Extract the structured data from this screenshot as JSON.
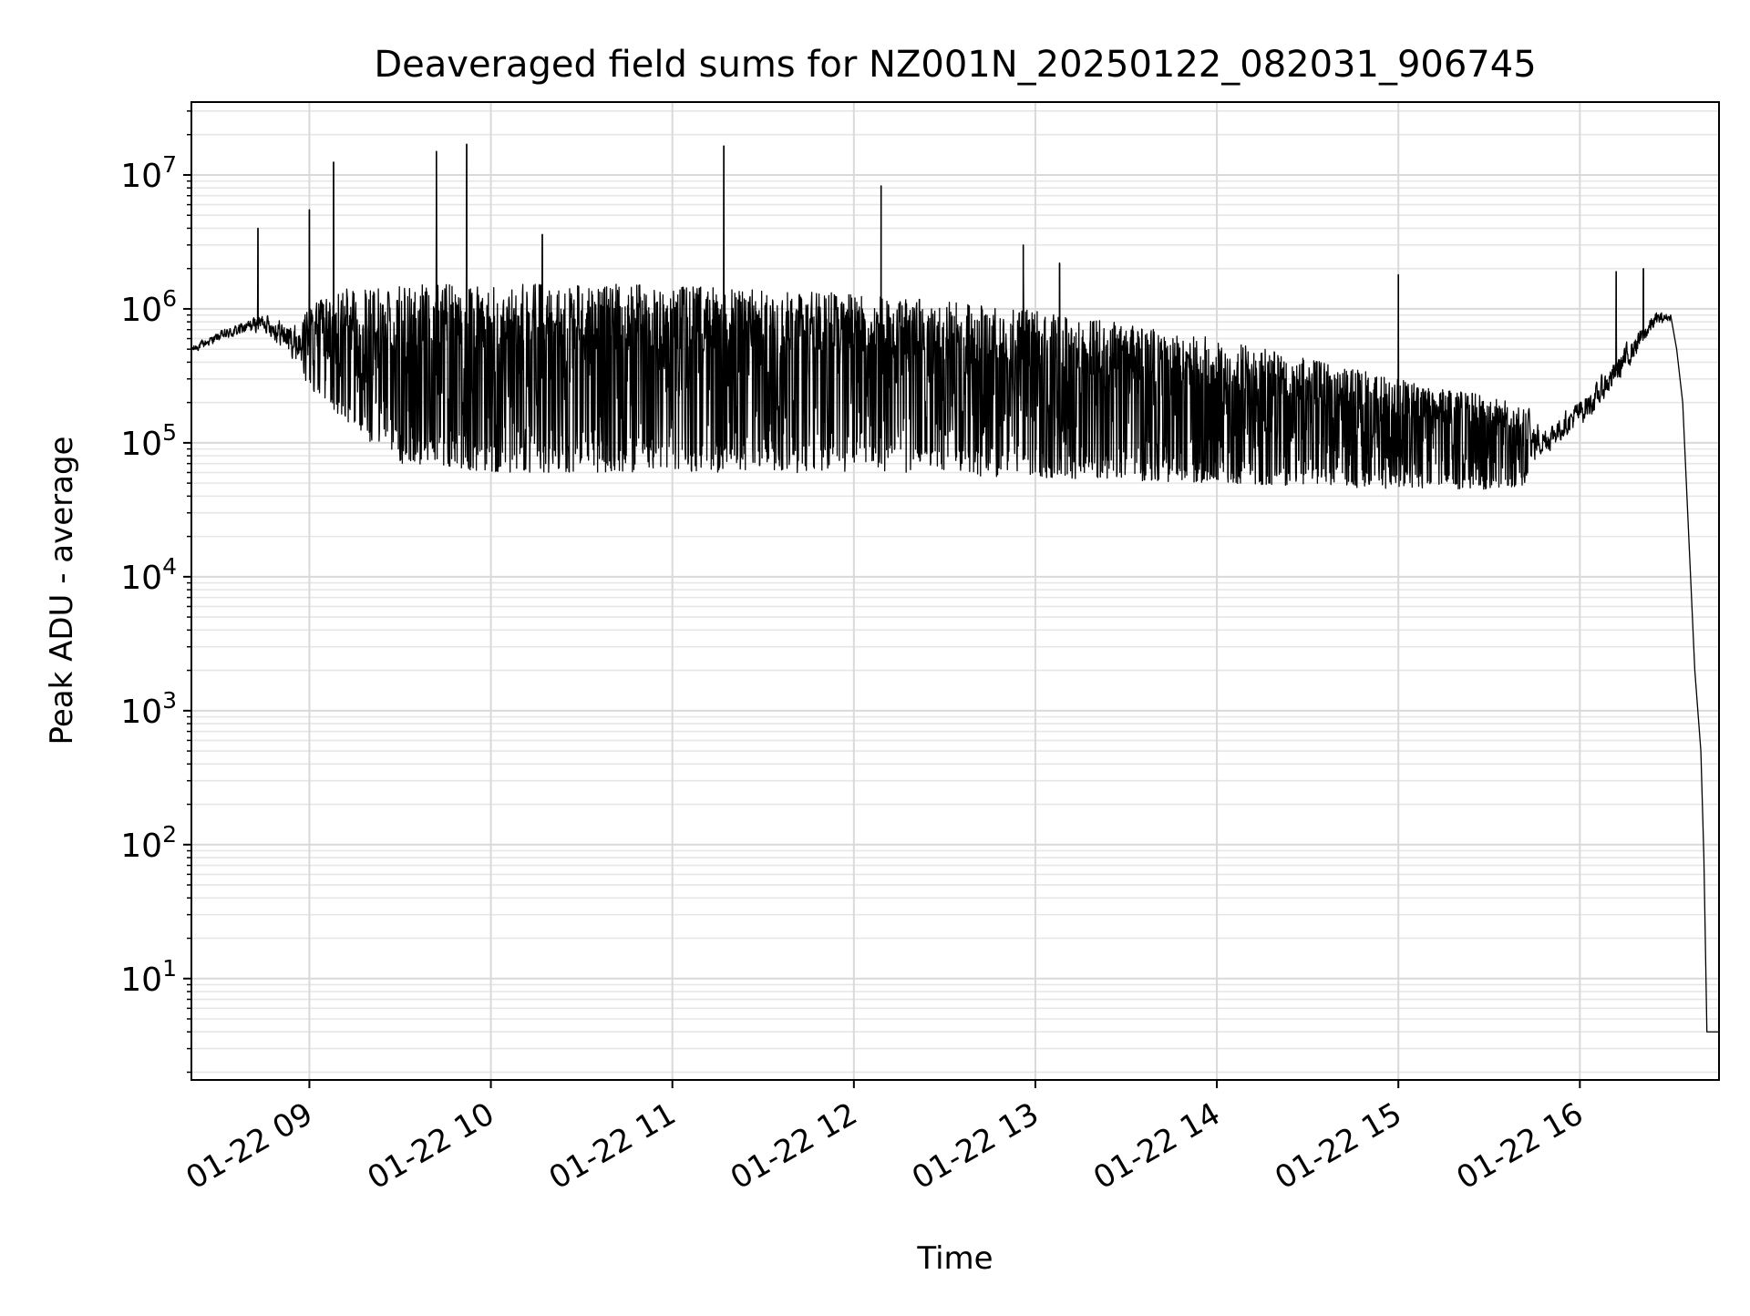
{
  "chart_data": {
    "type": "line",
    "title": "Deaveraged field sums for NZ001N_20250122_082031_906745",
    "xlabel": "Time",
    "ylabel": "Peak ADU - average",
    "y_scale": "log",
    "x_range": [
      "2025-01-22 08:21",
      "2025-01-22 16:46"
    ],
    "y_range": [
      1.75,
      35000000
    ],
    "x_ticks": [
      {
        "time": "2025-01-22 09:00",
        "label": "01-22 09"
      },
      {
        "time": "2025-01-22 10:00",
        "label": "01-22 10"
      },
      {
        "time": "2025-01-22 11:00",
        "label": "01-22 11"
      },
      {
        "time": "2025-01-22 12:00",
        "label": "01-22 12"
      },
      {
        "time": "2025-01-22 13:00",
        "label": "01-22 13"
      },
      {
        "time": "2025-01-22 14:00",
        "label": "01-22 14"
      },
      {
        "time": "2025-01-22 15:00",
        "label": "01-22 15"
      },
      {
        "time": "2025-01-22 16:00",
        "label": "01-22 16"
      }
    ],
    "y_ticks": [
      {
        "value": 10,
        "base": "10",
        "exp": "1"
      },
      {
        "value": 100,
        "base": "10",
        "exp": "2"
      },
      {
        "value": 1000,
        "base": "10",
        "exp": "3"
      },
      {
        "value": 10000,
        "base": "10",
        "exp": "4"
      },
      {
        "value": 100000,
        "base": "10",
        "exp": "5"
      },
      {
        "value": 1000000,
        "base": "10",
        "exp": "6"
      },
      {
        "value": 10000000,
        "base": "10",
        "exp": "7"
      }
    ],
    "grid": true,
    "legend": "none",
    "series": [
      {
        "color": "#000000",
        "envelope": [
          {
            "t": "2025-01-22 08:21",
            "lo": 450000,
            "hi": 550000
          },
          {
            "t": "2025-01-22 08:30",
            "lo": 550000,
            "hi": 700000
          },
          {
            "t": "2025-01-22 08:45",
            "lo": 650000,
            "hi": 1000000
          },
          {
            "t": "2025-01-22 08:55",
            "lo": 350000,
            "hi": 900000
          },
          {
            "t": "2025-01-22 09:10",
            "lo": 150000,
            "hi": 1400000
          },
          {
            "t": "2025-01-22 09:30",
            "lo": 70000,
            "hi": 1500000
          },
          {
            "t": "2025-01-22 10:00",
            "lo": 60000,
            "hi": 1600000
          },
          {
            "t": "2025-01-22 11:00",
            "lo": 60000,
            "hi": 1500000
          },
          {
            "t": "2025-01-22 12:00",
            "lo": 60000,
            "hi": 1300000
          },
          {
            "t": "2025-01-22 13:00",
            "lo": 55000,
            "hi": 1000000
          },
          {
            "t": "2025-01-22 14:00",
            "lo": 50000,
            "hi": 600000
          },
          {
            "t": "2025-01-22 15:00",
            "lo": 45000,
            "hi": 300000
          },
          {
            "t": "2025-01-22 15:40",
            "lo": 45000,
            "hi": 200000
          },
          {
            "t": "2025-01-22 15:50",
            "lo": 80000,
            "hi": 150000
          },
          {
            "t": "2025-01-22 16:05",
            "lo": 150000,
            "hi": 300000
          },
          {
            "t": "2025-01-22 16:15",
            "lo": 300000,
            "hi": 600000
          },
          {
            "t": "2025-01-22 16:25",
            "lo": 700000,
            "hi": 1000000
          },
          {
            "t": "2025-01-22 16:30",
            "lo": 800000,
            "hi": 950000
          }
        ],
        "tail": [
          {
            "t": "2025-01-22 16:30",
            "y": 900000
          },
          {
            "t": "2025-01-22 16:32",
            "y": 500000
          },
          {
            "t": "2025-01-22 16:34",
            "y": 200000
          },
          {
            "t": "2025-01-22 16:36",
            "y": 20000
          },
          {
            "t": "2025-01-22 16:38",
            "y": 2000
          },
          {
            "t": "2025-01-22 16:39",
            "y": 1000
          },
          {
            "t": "2025-01-22 16:40",
            "y": 500
          },
          {
            "t": "2025-01-22 16:41",
            "y": 80
          },
          {
            "t": "2025-01-22 16:42",
            "y": 4
          },
          {
            "t": "2025-01-22 16:46",
            "y": 4
          }
        ],
        "spikes": [
          {
            "t": "2025-01-22 08:43",
            "y": 4000000
          },
          {
            "t": "2025-01-22 09:00",
            "y": 5500000
          },
          {
            "t": "2025-01-22 09:08",
            "y": 12500000
          },
          {
            "t": "2025-01-22 09:42",
            "y": 15000000
          },
          {
            "t": "2025-01-22 09:52",
            "y": 17000000
          },
          {
            "t": "2025-01-22 10:17",
            "y": 3600000
          },
          {
            "t": "2025-01-22 11:17",
            "y": 16500000
          },
          {
            "t": "2025-01-22 12:09",
            "y": 8300000
          },
          {
            "t": "2025-01-22 12:56",
            "y": 3000000
          },
          {
            "t": "2025-01-22 13:08",
            "y": 2200000
          },
          {
            "t": "2025-01-22 15:00",
            "y": 1800000
          },
          {
            "t": "2025-01-22 16:12",
            "y": 1900000
          },
          {
            "t": "2025-01-22 16:21",
            "y": 2000000
          }
        ]
      }
    ]
  }
}
